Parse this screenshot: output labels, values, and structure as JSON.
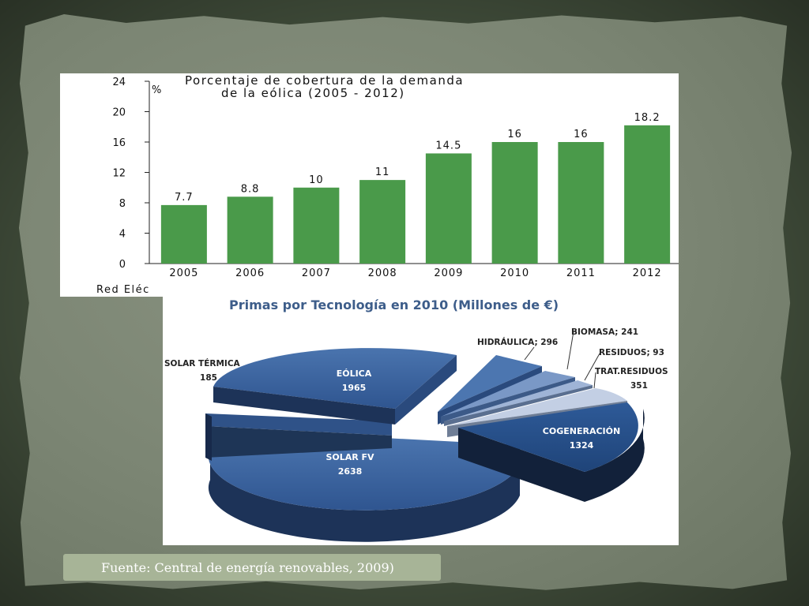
{
  "caption": "Fuente: Central de energía renovables, 2009)",
  "chart_data": [
    {
      "type": "bar",
      "title": "Porcentaje de cobertura de la demanda de la eólica (2005 - 2012)",
      "title_lines": [
        "Porcentaje de cobertura de la demanda",
        "de la eólica (2005 - 2012)"
      ],
      "ylabel": "%",
      "categories": [
        "2005",
        "2006",
        "2007",
        "2008",
        "2009",
        "2010",
        "2011",
        "2012"
      ],
      "values": [
        7.7,
        8.8,
        10,
        11,
        14.5,
        16,
        16,
        18.2
      ],
      "value_labels": [
        "7.7",
        "8.8",
        "10",
        "11",
        "14.5",
        "16",
        "16",
        "18.2"
      ],
      "yticks": [
        "0",
        "4",
        "8",
        "12",
        "16",
        "20",
        "24"
      ],
      "ylim": [
        0,
        24
      ],
      "bar_color": "#4a9a4a",
      "source_fragment": "Red Eléc"
    },
    {
      "type": "pie",
      "title": "Primas por Tecnología en 2010 (Millones de €)",
      "slices": [
        {
          "label": "SOLAR FV",
          "value": 2638,
          "value_label": "2638",
          "color": "#3a5f98"
        },
        {
          "label": "SOLAR TÉRMICA",
          "value": 185,
          "value_label": "185",
          "color": "#2e4f80"
        },
        {
          "label": "EÓLICA",
          "value": 1965,
          "value_label": "1965",
          "color": "#3d68a3"
        },
        {
          "label": "HIDRÁULICA",
          "value": 296,
          "value_label": "296",
          "color": "#4c76b0"
        },
        {
          "label": "BIOMASA",
          "value": 241,
          "value_label": "241",
          "color": "#6d8fc0"
        },
        {
          "label": "RESIDUOS",
          "value": 93,
          "value_label": "93",
          "color": "#8fa7cf"
        },
        {
          "label": "TRAT.RESIDUOS",
          "value": 351,
          "value_label": "351",
          "color": "#b9c7e0"
        },
        {
          "label": "COGENERACIÓN",
          "value": 1324,
          "value_label": "1324",
          "color": "#2c5591"
        }
      ],
      "label_texts": {
        "solar_fv": [
          "SOLAR FV",
          "2638"
        ],
        "solar_termica": [
          "SOLAR TÉRMICA",
          "185"
        ],
        "eolica": [
          "EÓLICA",
          "1965"
        ],
        "hidraulica": "HIDRÁULICA; 296",
        "biomasa": "BIOMASA; 241",
        "residuos": "RESIDUOS; 93",
        "trat_residuos": [
          "TRAT.RESIDUOS",
          "351"
        ],
        "cogeneracion": [
          "COGENERACIÓN",
          "1324"
        ]
      }
    }
  ]
}
